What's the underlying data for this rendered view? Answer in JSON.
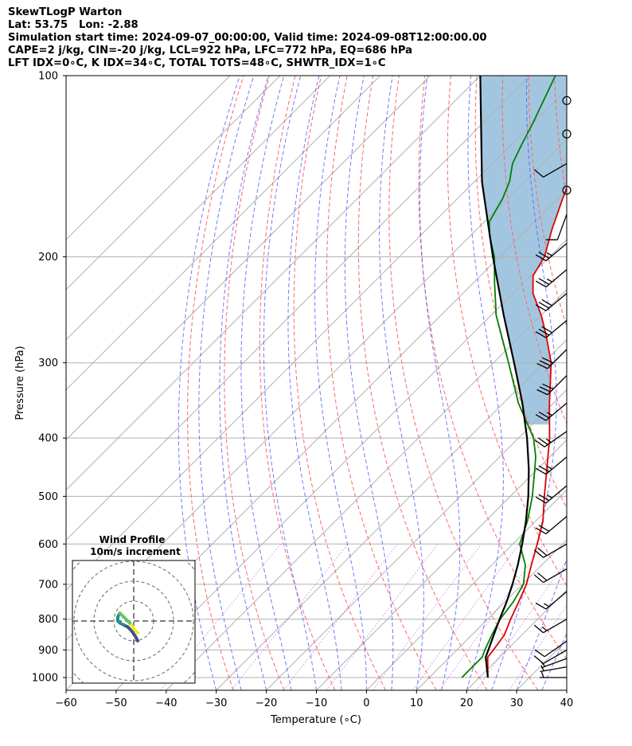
{
  "header": {
    "line1": "SkewTLogP Warton",
    "line2": "Lat: 53.75   Lon: -2.88",
    "line3": "Simulation start time: 2024-09-07_00:00:00, Valid time: 2024-09-08T12:00:00.00",
    "line4": "CAPE=2 j/kg, CIN=-20 j/kg, LCL=922 hPa, LFC=772 hPa, EQ=686 hPa",
    "line5": "LFT IDX=0∘C, K IDX=34∘C, TOTAL TOTS=48∘C, SHWTR_IDX=1∘C"
  },
  "chart_data": [
    {
      "type": "line",
      "subtype": "skew-T log-P",
      "xlabel": "Temperature (∘C)",
      "ylabel": "Pressure (hPa)",
      "xlim": [
        -60,
        40
      ],
      "ylim": [
        1050,
        100
      ],
      "y_scale": "log",
      "skew": "isotherms slanted 45 degrees to the right",
      "x_ticks": [
        "−60",
        "−50",
        "−40",
        "−30",
        "−20",
        "−10",
        "0",
        "10",
        "20",
        "30",
        "40"
      ],
      "y_ticks": [
        "100",
        "200",
        "300",
        "400",
        "500",
        "600",
        "700",
        "800",
        "900",
        "1000"
      ],
      "grid": true,
      "series": [
        {
          "color": "#e00000",
          "p": [
            1000,
            925,
            900,
            850,
            800,
            750,
            700,
            650,
            600,
            550,
            500,
            450,
            400,
            350,
            300,
            270,
            250,
            230,
            215,
            200,
            180,
            160,
            150,
            140,
            130,
            120,
            110,
            100
          ],
          "t": [
            21.7,
            17.6,
            17.3,
            16.5,
            14.6,
            12.8,
            10.8,
            7.9,
            4.9,
            1.5,
            -3.2,
            -8.2,
            -13.8,
            -20.8,
            -28.5,
            -35,
            -40,
            -46,
            -49.5,
            -51,
            -55,
            -59,
            -61,
            -63,
            -65,
            -68,
            -70,
            -72
          ]
        },
        {
          "color": "#008000",
          "p": [
            1000,
            925,
            900,
            850,
            800,
            750,
            700,
            650,
            600,
            550,
            500,
            450,
            430,
            400,
            350,
            300,
            250,
            220,
            200,
            185,
            175,
            160,
            150,
            140,
            130,
            120,
            100
          ],
          "t": [
            16.5,
            16.5,
            15.6,
            14,
            12.5,
            11.7,
            10.2,
            6.7,
            1.4,
            -1.6,
            -5.6,
            -10.6,
            -12.8,
            -17,
            -27,
            -37,
            -49,
            -56,
            -61,
            -66,
            -69,
            -71,
            -73,
            -76,
            -78,
            -80,
            -85
          ]
        },
        {
          "color": "#000000",
          "p": [
            1000,
            925,
            900,
            850,
            800,
            750,
            700,
            650,
            600,
            550,
            500,
            450,
            400,
            350,
            300,
            250,
            200,
            150,
            100
          ],
          "t": [
            21.7,
            17.2,
            16.3,
            14.4,
            12.4,
            10.4,
            8.0,
            5.2,
            1.9,
            -1.9,
            -6.4,
            -11.8,
            -18.3,
            -26.2,
            -35.9,
            -47.5,
            -61.3,
            -78.5,
            -100.0
          ]
        }
      ],
      "cape_fill_color": "#a3c6e0",
      "wind_barbs": [
        {
          "p": 1000,
          "dir": 270,
          "kt": 5
        },
        {
          "p": 960,
          "dir": 260,
          "kt": 5
        },
        {
          "p": 930,
          "dir": 250,
          "kt": 5
        },
        {
          "p": 900,
          "dir": 240,
          "kt": 10
        },
        {
          "p": 870,
          "dir": 235,
          "kt": 10
        },
        {
          "p": 800,
          "dir": 240,
          "kt": 15
        },
        {
          "p": 720,
          "dir": 230,
          "kt": 15
        },
        {
          "p": 660,
          "dir": 240,
          "kt": 20
        },
        {
          "p": 600,
          "dir": 240,
          "kt": 20
        },
        {
          "p": 540,
          "dir": 230,
          "kt": 20
        },
        {
          "p": 480,
          "dir": 230,
          "kt": 25
        },
        {
          "p": 430,
          "dir": 230,
          "kt": 25
        },
        {
          "p": 390,
          "dir": 235,
          "kt": 25
        },
        {
          "p": 350,
          "dir": 230,
          "kt": 25
        },
        {
          "p": 315,
          "dir": 225,
          "kt": 30
        },
        {
          "p": 285,
          "dir": 225,
          "kt": 30
        },
        {
          "p": 255,
          "dir": 230,
          "kt": 30
        },
        {
          "p": 230,
          "dir": 230,
          "kt": 30
        },
        {
          "p": 210,
          "dir": 230,
          "kt": 25
        },
        {
          "p": 190,
          "dir": 230,
          "kt": 25
        },
        {
          "p": 170,
          "dir": 200,
          "kt": 10
        },
        {
          "p": 155,
          "dir": 0,
          "kt": 0
        },
        {
          "p": 140,
          "dir": 240,
          "kt": 10
        },
        {
          "p": 125,
          "dir": 180,
          "kt": 0
        },
        {
          "p": 110,
          "dir": 0,
          "kt": 0
        }
      ]
    },
    {
      "type": "scatter",
      "subtype": "hodograph",
      "title": "Wind Profile",
      "subtitle": "10m/s increment",
      "ring_increment": 10,
      "points_u": [
        2,
        1,
        -1,
        -3,
        -5,
        -7,
        -8,
        -8,
        -7,
        -6,
        -5,
        -3,
        -1,
        0,
        1,
        2
      ],
      "points_v": [
        10,
        8,
        5,
        3,
        2,
        1,
        0,
        -2,
        -4,
        -3,
        -2,
        0,
        2,
        4,
        5,
        6
      ],
      "colormap": [
        "#3b528b",
        "#21918c",
        "#5ec962",
        "#fde725"
      ]
    }
  ]
}
